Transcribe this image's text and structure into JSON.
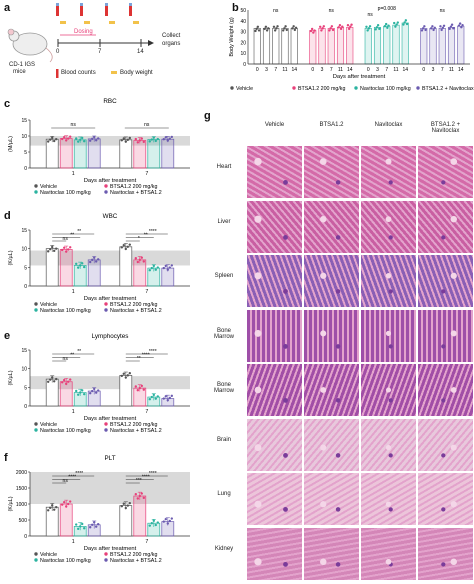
{
  "panel_a": {
    "label": "a",
    "mouse_label_1": "CD-1 IGS",
    "mouse_label_2": "mice",
    "dosing": "Dosing",
    "days": [
      "0",
      "7",
      "14"
    ],
    "collect_1": "Collect",
    "collect_2": "organs",
    "legend_blood": "Blood counts",
    "legend_weight": "Body weight"
  },
  "legend_items": [
    "Vehicle",
    "BTSA1.2 200 mg/kg",
    "Navitoclax 100 mg/kg",
    "BTSA1.2 + Navitoclax"
  ],
  "legend_items_short": [
    "Vehicle",
    "BTSA1.2 200 mg/kg",
    "Navitoclax 100 mg/kg",
    "Navitoclax + BTSA1.2"
  ],
  "xlabel": "Days after treatment",
  "colors": {
    "vehicle": "#555555",
    "btsa": "#e8407a",
    "navi": "#2bb3a0",
    "combo": "#6b5bb0",
    "band": "#d9d9d9"
  },
  "chart_data": [
    {
      "panel": "b",
      "type": "scatter",
      "ylabel": "Body Weight (g)",
      "xlabel": "Days after treatment",
      "ylim": [
        0,
        50
      ],
      "yticks": [
        "0",
        "10",
        "20",
        "30",
        "40",
        "50"
      ],
      "x": [
        "0",
        "3",
        "7",
        "11",
        "14"
      ],
      "annotations": [
        "ns",
        "ns",
        "p=0.008",
        "ns",
        "ns"
      ],
      "series": [
        {
          "name": "Vehicle",
          "values": [
            33,
            33,
            33,
            33,
            33
          ]
        },
        {
          "name": "BTSA1.2 200 mg/kg",
          "values": [
            31,
            33,
            33,
            34,
            34
          ]
        },
        {
          "name": "Navitoclax 100 mg/kg",
          "values": [
            33,
            34,
            35,
            36,
            38
          ]
        },
        {
          "name": "BTSA1.2 + Navitoclax",
          "values": [
            33,
            33,
            33,
            34,
            35
          ]
        }
      ]
    },
    {
      "panel": "c",
      "type": "bar",
      "title": "RBC",
      "ylabel": "(M/µL)",
      "ylim": [
        0,
        15
      ],
      "yticks": [
        "0",
        "5",
        "10",
        "15"
      ],
      "categories": [
        "1",
        "7"
      ],
      "annotations": [
        "ns",
        "ns"
      ],
      "series": [
        {
          "name": "Vehicle",
          "values": [
            9,
            8.8
          ]
        },
        {
          "name": "BTSA1.2 200 mg/kg",
          "values": [
            9.2,
            8.6
          ]
        },
        {
          "name": "Navitoclax 100 mg/kg",
          "values": [
            8.8,
            8.9
          ]
        },
        {
          "name": "Navitoclax + BTSA1.2",
          "values": [
            9.1,
            9.0
          ]
        }
      ]
    },
    {
      "panel": "d",
      "type": "bar",
      "title": "WBC",
      "ylabel": "(K/µL)",
      "ylim": [
        0,
        15
      ],
      "yticks": [
        "0",
        "5",
        "10",
        "15"
      ],
      "categories": [
        "1",
        "7"
      ],
      "annotations": [
        "ns",
        "**",
        "**",
        "*",
        "**",
        "****"
      ],
      "series": [
        {
          "name": "Vehicle",
          "values": [
            10,
            10.5
          ]
        },
        {
          "name": "BTSA1.2 200 mg/kg",
          "values": [
            9.8,
            7
          ]
        },
        {
          "name": "Navitoclax 100 mg/kg",
          "values": [
            5.5,
            4.8
          ]
        },
        {
          "name": "Navitoclax + BTSA1.2",
          "values": [
            7,
            4.8
          ]
        }
      ]
    },
    {
      "panel": "e",
      "type": "bar",
      "title": "Lymphocytes",
      "ylabel": "(K/µL)",
      "ylim": [
        0,
        15
      ],
      "yticks": [
        "0",
        "5",
        "10",
        "15"
      ],
      "categories": [
        "1",
        "7"
      ],
      "annotations": [
        "ns",
        "**",
        "**",
        "**",
        "****",
        "****"
      ],
      "series": [
        {
          "name": "Vehicle",
          "values": [
            7.2,
            8.2
          ]
        },
        {
          "name": "BTSA1.2 200 mg/kg",
          "values": [
            6.5,
            4.8
          ]
        },
        {
          "name": "Navitoclax 100 mg/kg",
          "values": [
            3.6,
            2.4
          ]
        },
        {
          "name": "Navitoclax + BTSA1.2",
          "values": [
            4,
            2
          ]
        }
      ]
    },
    {
      "panel": "f",
      "type": "bar",
      "title": "PLT",
      "ylabel": "(K/µL)",
      "ylim": [
        0,
        2000
      ],
      "yticks": [
        "0",
        "500",
        "1000",
        "1500",
        "2000"
      ],
      "categories": [
        "1",
        "7"
      ],
      "annotations": [
        "ns",
        "****",
        "****",
        "***",
        "****",
        "****"
      ],
      "series": [
        {
          "name": "Vehicle",
          "values": [
            900,
            950
          ]
        },
        {
          "name": "BTSA1.2 200 mg/kg",
          "values": [
            1000,
            1250
          ]
        },
        {
          "name": "Navitoclax 100 mg/kg",
          "values": [
            300,
            400
          ]
        },
        {
          "name": "Navitoclax + BTSA1.2",
          "values": [
            350,
            450
          ]
        }
      ]
    }
  ],
  "panel_g": {
    "label": "g",
    "columns": [
      "Vehicle",
      "BTSA1.2",
      "Navitoclax",
      "BTSA1.2 +\nNavitoclax"
    ],
    "rows": [
      "Heart",
      "Liver",
      "Spleen",
      "Bone\nMarrow",
      "Bone\nMarrow",
      "Brain",
      "Lung",
      "Kidney"
    ]
  }
}
